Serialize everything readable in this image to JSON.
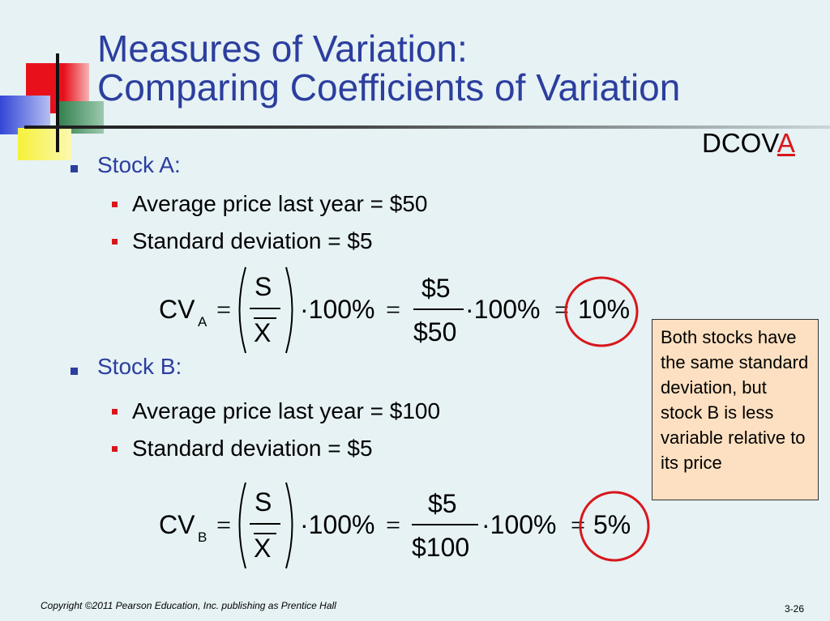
{
  "title": {
    "line1": "Measures of Variation:",
    "line2": "Comparing Coefficients of Variation"
  },
  "dcova": {
    "prefix": "DCOV",
    "highlight": "A"
  },
  "stock_a": {
    "label": "Stock A:",
    "items": [
      "Average price last year = $50",
      "Standard deviation = $5"
    ],
    "equation": {
      "cv": "CV",
      "subscript": "A",
      "equals": "=",
      "s": "S",
      "xbar": "X",
      "times_100": "·100%",
      "equals2": "=",
      "numerator": "$5",
      "denominator": "$50",
      "times_100b": "·100%",
      "equals3": "=",
      "result": "10%"
    }
  },
  "stock_b": {
    "label": "Stock B:",
    "items": [
      "Average price last year = $100",
      "Standard deviation = $5"
    ],
    "equation": {
      "cv": "CV",
      "subscript": "B",
      "equals": "=",
      "s": "S",
      "xbar": "X",
      "times_100": "·100%",
      "equals2": "=",
      "numerator": "$5",
      "denominator": "$100",
      "times_100b": "·100%",
      "equals3": "=",
      "result": "5%"
    }
  },
  "note": "Both stocks have the same standard deviation, but stock B is less variable relative to its price",
  "footer": {
    "copyright": "Copyright ©2011 Pearson Education, Inc. publishing as Prentice Hall",
    "slide_number": "3-26"
  },
  "colors": {
    "title": "#2c3e9e",
    "highlight_red": "#d8171c",
    "note_bg": "#fde0c1",
    "background": "#e6f2f4"
  }
}
